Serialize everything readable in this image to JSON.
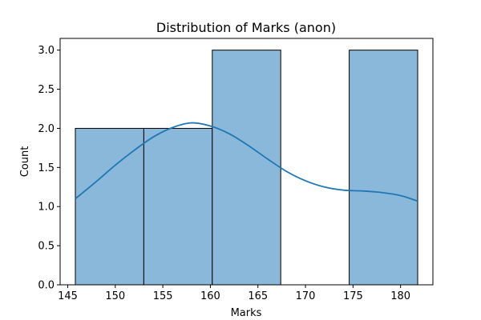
{
  "chart_data": {
    "type": "bar",
    "subtype": "histogram",
    "title": "Distribution of Marks (anon)",
    "xlabel": "Marks",
    "ylabel": "Count",
    "xlim": [
      144.2,
      183.4
    ],
    "ylim": [
      0,
      3.15
    ],
    "xticks": [
      145,
      150,
      155,
      160,
      165,
      170,
      175,
      180
    ],
    "xtick_labels": [
      "145",
      "150",
      "155",
      "160",
      "165",
      "170",
      "175",
      "180"
    ],
    "yticks": [
      0,
      0.5,
      1.0,
      1.5,
      2.0,
      2.5,
      3.0
    ],
    "ytick_labels": [
      "0.0",
      "0.5",
      "1.0",
      "1.5",
      "2.0",
      "2.5",
      "3.0"
    ],
    "bins": [
      {
        "start": 145.8,
        "end": 153.0,
        "count": 2
      },
      {
        "start": 153.0,
        "end": 160.2,
        "count": 2
      },
      {
        "start": 160.2,
        "end": 167.4,
        "count": 3
      },
      {
        "start": 167.4,
        "end": 174.6,
        "count": 0
      },
      {
        "start": 174.6,
        "end": 181.8,
        "count": 3
      }
    ],
    "kde": {
      "x": [
        145.8,
        148,
        150,
        152,
        154,
        156,
        158,
        160,
        162,
        164,
        166,
        168,
        170,
        172,
        174,
        176,
        178,
        180,
        181.8
      ],
      "y": [
        1.1,
        1.32,
        1.53,
        1.72,
        1.89,
        2.01,
        2.07,
        2.03,
        1.93,
        1.78,
        1.61,
        1.45,
        1.33,
        1.25,
        1.21,
        1.2,
        1.18,
        1.14,
        1.07
      ]
    },
    "grid": false,
    "colors": {
      "bar_fill": "#8ab8da",
      "bar_edge": "#000000",
      "kde_line": "#1f77b4",
      "axes": "#000000"
    }
  }
}
